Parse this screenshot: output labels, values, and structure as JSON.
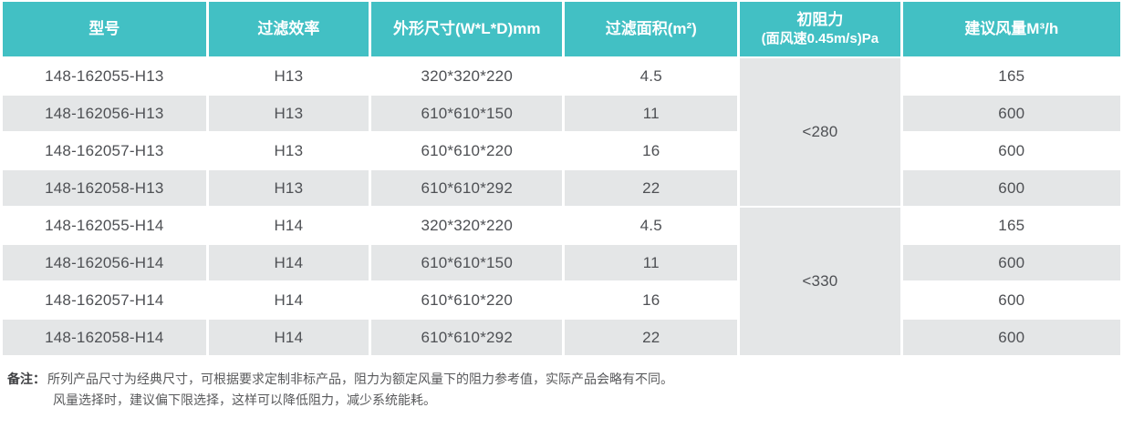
{
  "colors": {
    "header_bg": "#42C0C4",
    "header_text": "#FFFFFF",
    "row_alt_bg": "#E4E6E7",
    "cell_text": "#4E5054"
  },
  "table": {
    "headers": [
      {
        "label": "型号"
      },
      {
        "label": "过滤效率"
      },
      {
        "label": "外形尺寸(W*L*D)mm"
      },
      {
        "label": "过滤面积(m²)"
      },
      {
        "label": "初阻力",
        "sublabel": "(面风速0.45m/s)Pa"
      },
      {
        "label": "建议风量M³/h"
      }
    ],
    "rows": [
      {
        "model": "148-162055-H13",
        "efficiency": "H13",
        "dimensions": "320*320*220",
        "area": "4.5",
        "airflow": "165"
      },
      {
        "model": "148-162056-H13",
        "efficiency": "H13",
        "dimensions": "610*610*150",
        "area": "11",
        "airflow": "600"
      },
      {
        "model": "148-162057-H13",
        "efficiency": "H13",
        "dimensions": "610*610*220",
        "area": "16",
        "airflow": "600"
      },
      {
        "model": "148-162058-H13",
        "efficiency": "H13",
        "dimensions": "610*610*292",
        "area": "22",
        "airflow": "600"
      },
      {
        "model": "148-162055-H14",
        "efficiency": "H14",
        "dimensions": "320*320*220",
        "area": "4.5",
        "airflow": "165"
      },
      {
        "model": "148-162056-H14",
        "efficiency": "H14",
        "dimensions": "610*610*150",
        "area": "11",
        "airflow": "600"
      },
      {
        "model": "148-162057-H14",
        "efficiency": "H14",
        "dimensions": "610*610*220",
        "area": "16",
        "airflow": "600"
      },
      {
        "model": "148-162058-H14",
        "efficiency": "H14",
        "dimensions": "610*610*292",
        "area": "22",
        "airflow": "600"
      }
    ],
    "resistance_groups": [
      {
        "value": "<280",
        "rowspan": 4
      },
      {
        "value": "<330",
        "rowspan": 4
      }
    ]
  },
  "note": {
    "label": "备注：",
    "lines": [
      "所列产品尺寸为经典尺寸，可根据要求定制非标产品，阻力为额定风量下的阻力参考值，实际产品会略有不同。",
      "风量选择时，建议偏下限选择，这样可以降低阻力，减少系统能耗。"
    ]
  }
}
